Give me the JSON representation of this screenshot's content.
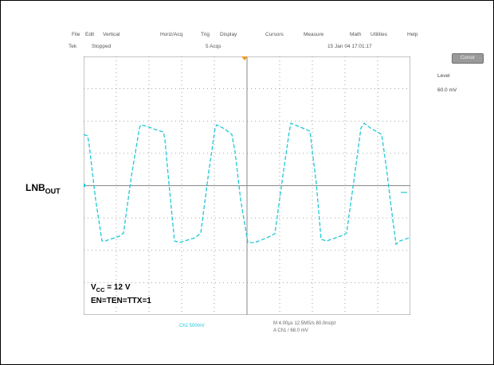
{
  "menu": {
    "items": [
      "File",
      "Edit",
      "Vertical",
      "Horiz/Acq",
      "Trig",
      "Display",
      "Cursors",
      "Measure",
      "Math",
      "Utilities",
      "Help"
    ]
  },
  "status": {
    "tek": "Tek",
    "run_state": "Stopped",
    "acquisitions": "5 Acqs",
    "timestamp": "15 Jan 04 17:01:17"
  },
  "side": {
    "button": "Cursor",
    "label": "Level",
    "value": "60.0 mV"
  },
  "waveform_label": {
    "main": "LNB",
    "sub": "OUT"
  },
  "annotation": {
    "vcc_main": "V",
    "vcc_sub": "CC",
    "vcc_value": " = 12 V",
    "enables": "EN=TEN=TTX=1"
  },
  "footer": {
    "channel_scale": "Ch1  500mV",
    "timebase": "M 4.00μs  12.5MS/s  80.0ns/pt",
    "trigger": "A  Ch1  /  68.0 mV"
  },
  "colors": {
    "trace": "#1fc8d6",
    "grid": "#888888",
    "screen_bg": "#ffffff",
    "marker": "#f29b2b"
  }
}
